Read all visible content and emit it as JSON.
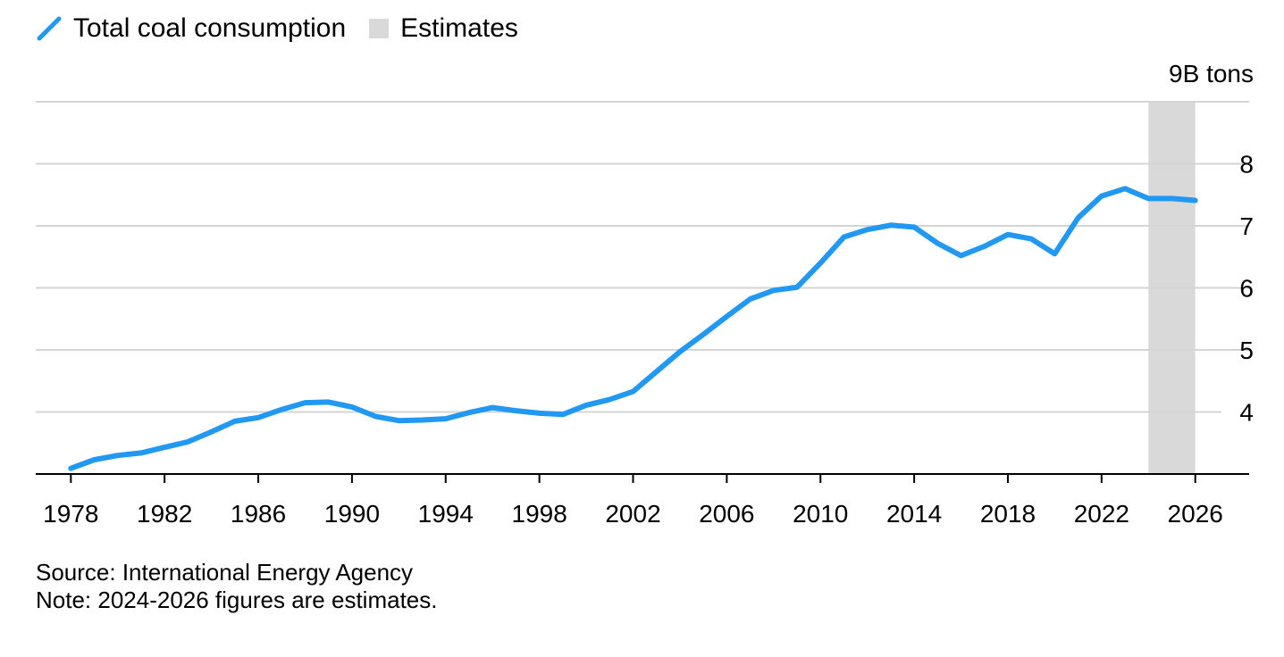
{
  "legend": {
    "series_label": "Total coal consumption",
    "estimates_label": "Estimates"
  },
  "footer": {
    "source": "Source: International Energy Agency",
    "note": "Note: 2024-2026 figures are estimates."
  },
  "colors": {
    "line": "#2199f3",
    "estimate_band": "#d9d9d9",
    "grid": "#d4d4d4",
    "axis": "#000000"
  },
  "chart_data": {
    "type": "line",
    "unit_label": "9B tons",
    "ylim": [
      3.0,
      9.0
    ],
    "xlim": [
      1976.5,
      2028.3
    ],
    "y_ticks": [
      4,
      5,
      6,
      7,
      8,
      9
    ],
    "y_tick_labels": [
      "4",
      "5",
      "6",
      "7",
      "8",
      "9B tons"
    ],
    "x_ticks": [
      1978,
      1982,
      1986,
      1990,
      1994,
      1998,
      2002,
      2006,
      2010,
      2014,
      2018,
      2022,
      2026
    ],
    "x_tick_labels": [
      "1978",
      "1982",
      "1986",
      "1990",
      "1994",
      "1998",
      "2002",
      "2006",
      "2010",
      "2014",
      "2018",
      "2022",
      "2026"
    ],
    "estimate_range": [
      2024,
      2026
    ],
    "grid": true,
    "legend_position": "top-left",
    "series": [
      {
        "name": "Total coal consumption",
        "x": [
          1978,
          1979,
          1980,
          1981,
          1982,
          1983,
          1984,
          1985,
          1986,
          1987,
          1988,
          1989,
          1990,
          1991,
          1992,
          1993,
          1994,
          1995,
          1996,
          1997,
          1998,
          1999,
          2000,
          2001,
          2002,
          2003,
          2004,
          2005,
          2006,
          2007,
          2008,
          2009,
          2010,
          2011,
          2012,
          2013,
          2014,
          2015,
          2016,
          2017,
          2018,
          2019,
          2020,
          2021,
          2022,
          2023,
          2024,
          2025,
          2026
        ],
        "y": [
          3.09,
          3.23,
          3.3,
          3.34,
          3.43,
          3.52,
          3.68,
          3.85,
          3.91,
          4.04,
          4.15,
          4.16,
          4.08,
          3.93,
          3.86,
          3.87,
          3.89,
          3.99,
          4.07,
          4.02,
          3.98,
          3.96,
          4.11,
          4.2,
          4.33,
          4.65,
          4.97,
          5.25,
          5.54,
          5.82,
          5.96,
          6.01,
          6.4,
          6.82,
          6.94,
          7.01,
          6.98,
          6.72,
          6.52,
          6.67,
          6.86,
          6.79,
          6.55,
          7.13,
          7.48,
          7.6,
          7.44,
          7.44,
          7.41
        ]
      }
    ]
  }
}
